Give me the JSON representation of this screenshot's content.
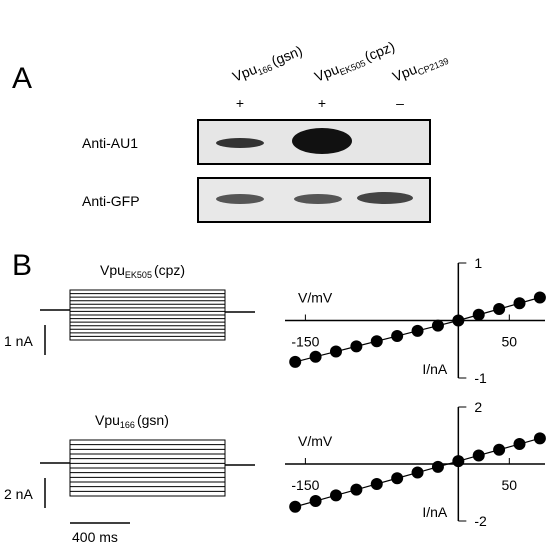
{
  "panel_a": {
    "label": "A",
    "lanes": [
      {
        "name": "Vpu",
        "sub": "166",
        "suffix": "(gsn)",
        "sign": "+"
      },
      {
        "name": "Vpu",
        "sub": "EK505",
        "suffix": "(cpz)",
        "sign": "+"
      },
      {
        "name": "Vpu",
        "sub": "CP2139",
        "sign": "–"
      }
    ],
    "blots": [
      "Anti-AU1",
      "Anti-GFP"
    ]
  },
  "panel_b": {
    "label": "B",
    "recordings": [
      {
        "name": "Vpu",
        "sub": "EK505",
        "suffix": "(cpz)",
        "scale": "1 nA"
      },
      {
        "name": "Vpu",
        "sub": "166",
        "suffix": "(gsn)",
        "scale": "2 nA"
      }
    ],
    "time_scale": "400 ms"
  },
  "chart_data": [
    {
      "type": "scatter",
      "x_label": "V/mV",
      "y_label": "I/nA",
      "x": [
        -160,
        -140,
        -120,
        -100,
        -80,
        -60,
        -40,
        -20,
        0,
        20,
        40,
        60,
        80
      ],
      "values": [
        -0.72,
        -0.63,
        -0.54,
        -0.45,
        -0.36,
        -0.27,
        -0.18,
        -0.09,
        0,
        0.1,
        0.2,
        0.3,
        0.4
      ],
      "color": "#000000",
      "xlim": [
        -170,
        85
      ],
      "ylim": [
        -1,
        1
      ],
      "xticks": [
        -150,
        50
      ],
      "yticks": [
        1,
        -1
      ]
    },
    {
      "type": "scatter",
      "x_label": "V/mV",
      "y_label": "I/nA",
      "x": [
        -160,
        -140,
        -120,
        -100,
        -80,
        -60,
        -40,
        -20,
        0,
        20,
        40,
        60,
        80
      ],
      "values": [
        -1.5,
        -1.3,
        -1.1,
        -0.9,
        -0.7,
        -0.5,
        -0.3,
        -0.1,
        0.1,
        0.3,
        0.5,
        0.7,
        0.9
      ],
      "color": "#000000",
      "xlim": [
        -170,
        85
      ],
      "ylim": [
        -2,
        2
      ],
      "xticks": [
        -150,
        50
      ],
      "yticks": [
        2,
        -2
      ]
    }
  ]
}
